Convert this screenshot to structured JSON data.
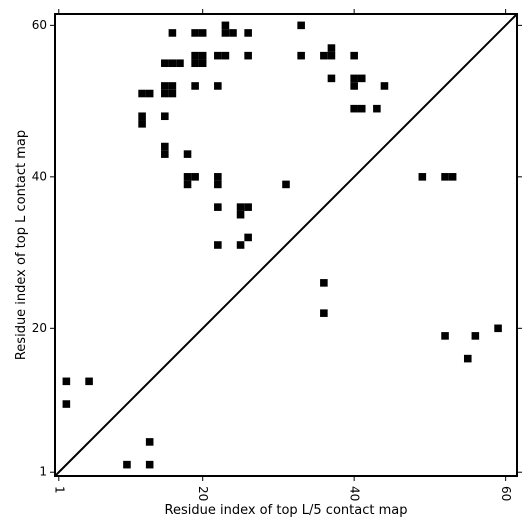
{
  "chart_data": {
    "type": "heatmap",
    "title": "",
    "xlabel": "Residue index of top L/5 contact map",
    "ylabel": "Residue index of top L contact map",
    "xlim": [
      0.5,
      61.5
    ],
    "ylim": [
      0.5,
      61.5
    ],
    "xticks": [
      1,
      20,
      40,
      60
    ],
    "yticks": [
      1,
      20,
      40,
      60
    ],
    "xtick_labels": [
      "1",
      "20",
      "40",
      "60"
    ],
    "ytick_labels": [
      "1",
      "20",
      "40",
      "60"
    ],
    "xtick_rotation": -90,
    "diagonal": {
      "from": [
        0.5,
        0.5
      ],
      "to": [
        61.5,
        61.5
      ]
    },
    "grid": false,
    "cell_color": "#000000",
    "background_color": "#ffffff",
    "cells": [
      [
        16,
        59
      ],
      [
        19,
        59
      ],
      [
        20,
        59
      ],
      [
        23,
        60
      ],
      [
        23,
        59
      ],
      [
        24,
        59
      ],
      [
        26,
        59
      ],
      [
        33,
        60
      ],
      [
        19,
        56
      ],
      [
        20,
        56
      ],
      [
        19,
        55
      ],
      [
        20,
        55
      ],
      [
        22,
        56
      ],
      [
        23,
        56
      ],
      [
        26,
        56
      ],
      [
        33,
        56
      ],
      [
        15,
        55
      ],
      [
        16,
        55
      ],
      [
        17,
        55
      ],
      [
        15,
        52
      ],
      [
        16,
        52
      ],
      [
        15,
        51
      ],
      [
        16,
        51
      ],
      [
        12,
        51
      ],
      [
        13,
        51
      ],
      [
        19,
        52
      ],
      [
        22,
        52
      ],
      [
        12,
        48
      ],
      [
        12,
        47
      ],
      [
        15,
        48
      ],
      [
        15,
        44
      ],
      [
        15,
        43
      ],
      [
        18,
        43
      ],
      [
        18,
        40
      ],
      [
        19,
        40
      ],
      [
        18,
        39
      ],
      [
        22,
        40
      ],
      [
        22,
        39
      ],
      [
        31,
        39
      ],
      [
        22,
        36
      ],
      [
        25,
        36
      ],
      [
        26,
        36
      ],
      [
        25,
        35
      ],
      [
        26,
        32
      ],
      [
        22,
        31
      ],
      [
        25,
        31
      ],
      [
        36,
        56
      ],
      [
        37,
        56
      ],
      [
        37,
        57
      ],
      [
        37,
        53
      ],
      [
        40,
        56
      ],
      [
        40,
        53
      ],
      [
        41,
        53
      ],
      [
        40,
        52
      ],
      [
        44,
        52
      ],
      [
        40,
        49
      ],
      [
        41,
        49
      ],
      [
        43,
        49
      ],
      [
        49,
        40
      ],
      [
        52,
        40
      ],
      [
        53,
        40
      ],
      [
        36,
        26
      ],
      [
        36,
        22
      ],
      [
        52,
        19
      ],
      [
        56,
        19
      ],
      [
        59,
        20
      ],
      [
        55,
        16
      ],
      [
        2,
        13
      ],
      [
        5,
        13
      ],
      [
        2,
        10
      ],
      [
        13,
        5
      ],
      [
        10,
        2
      ],
      [
        13,
        2
      ]
    ]
  }
}
